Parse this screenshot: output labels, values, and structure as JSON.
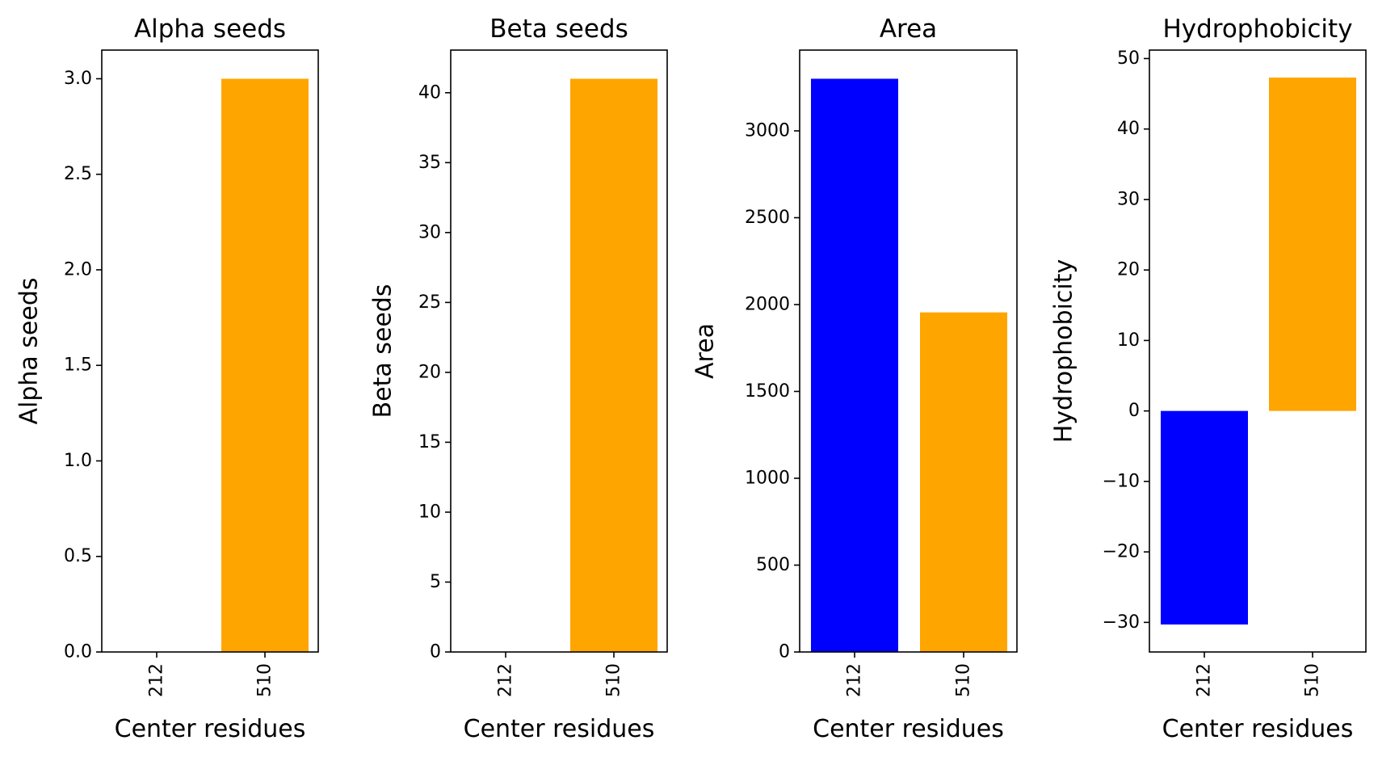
{
  "chart_data": [
    {
      "type": "bar",
      "title": "Alpha seeds",
      "xlabel": "Center residues",
      "ylabel": "Alpha seeds",
      "categories": [
        "212",
        "510"
      ],
      "values": [
        0,
        3.0
      ],
      "colors": [
        "#0000ff",
        "#ffa500"
      ],
      "ylim": [
        0,
        3.15
      ],
      "yticks": [
        0.0,
        0.5,
        1.0,
        1.5,
        2.0,
        2.5,
        3.0
      ],
      "ytick_labels": [
        "0.0",
        "0.5",
        "1.0",
        "1.5",
        "2.0",
        "2.5",
        "3.0"
      ],
      "grid": false
    },
    {
      "type": "bar",
      "title": "Beta seeds",
      "xlabel": "Center residues",
      "ylabel": "Beta seeds",
      "categories": [
        "212",
        "510"
      ],
      "values": [
        0,
        41
      ],
      "colors": [
        "#0000ff",
        "#ffa500"
      ],
      "ylim": [
        0,
        43.05
      ],
      "yticks": [
        0,
        5,
        10,
        15,
        20,
        25,
        30,
        35,
        40
      ],
      "ytick_labels": [
        "0",
        "5",
        "10",
        "15",
        "20",
        "25",
        "30",
        "35",
        "40"
      ],
      "grid": false
    },
    {
      "type": "bar",
      "title": "Area",
      "xlabel": "Center residues",
      "ylabel": "Area",
      "categories": [
        "212",
        "510"
      ],
      "values": [
        3300,
        1955
      ],
      "colors": [
        "#0000ff",
        "#ffa500"
      ],
      "ylim": [
        0,
        3465
      ],
      "yticks": [
        0,
        500,
        1000,
        1500,
        2000,
        2500,
        3000
      ],
      "ytick_labels": [
        "0",
        "500",
        "1000",
        "1500",
        "2000",
        "2500",
        "3000"
      ],
      "grid": false
    },
    {
      "type": "bar",
      "title": "Hydrophobicity",
      "xlabel": "Center residues",
      "ylabel": "Hydrophobicity",
      "categories": [
        "212",
        "510"
      ],
      "values": [
        -30.3,
        47.3
      ],
      "colors": [
        "#0000ff",
        "#ffa500"
      ],
      "ylim": [
        -34.2,
        51.2
      ],
      "yticks": [
        -30,
        -20,
        -10,
        0,
        10,
        20,
        30,
        40,
        50
      ],
      "ytick_labels": [
        "−30",
        "−20",
        "−10",
        "0",
        "10",
        "20",
        "30",
        "40",
        "50"
      ],
      "grid": false
    }
  ]
}
